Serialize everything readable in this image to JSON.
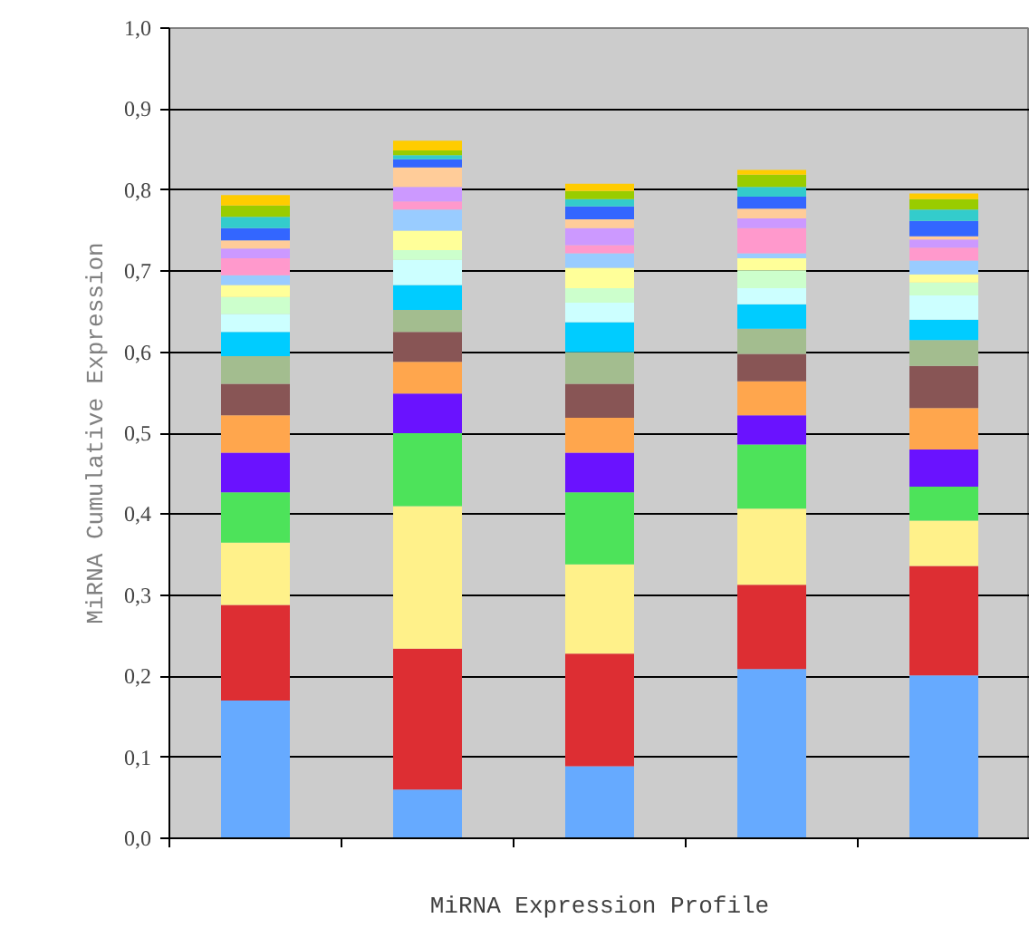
{
  "chart_data": {
    "type": "bar",
    "stacked": true,
    "xlabel": "MiRNA Expression Profile",
    "ylabel": "MiRNA Cumulative Expression",
    "categories": [
      null,
      null,
      null,
      null,
      null
    ],
    "ylim": [
      0,
      1
    ],
    "yticks": [
      {
        "value": 0,
        "label": "0,0"
      },
      {
        "value": 0.1,
        "label": "0,1"
      },
      {
        "value": 0.2,
        "label": "0,2"
      },
      {
        "value": 0.3,
        "label": "0,3"
      },
      {
        "value": 0.4,
        "label": "0,4"
      },
      {
        "value": 0.5,
        "label": "0,5"
      },
      {
        "value": 0.6,
        "label": "0,6"
      },
      {
        "value": 0.7,
        "label": "0,7"
      },
      {
        "value": 0.8,
        "label": "0,8"
      },
      {
        "value": 0.9,
        "label": "0,9"
      },
      {
        "value": 1,
        "label": "1,0"
      }
    ],
    "grid": "y",
    "series": [
      {
        "color": "#66aaff",
        "values": [
          0.17,
          0.06,
          0.089,
          0.209,
          0.201
        ]
      },
      {
        "color": "#dd2e33",
        "values": [
          0.118,
          0.174,
          0.139,
          0.104,
          0.135
        ]
      },
      {
        "color": "#fff18a",
        "values": [
          0.077,
          0.176,
          0.11,
          0.094,
          0.056
        ]
      },
      {
        "color": "#4de35a",
        "values": [
          0.062,
          0.09,
          0.089,
          0.079,
          0.042
        ]
      },
      {
        "color": "#6a12ff",
        "values": [
          0.049,
          0.049,
          0.049,
          0.036,
          0.046
        ]
      },
      {
        "color": "#ffa64d",
        "values": [
          0.046,
          0.039,
          0.043,
          0.042,
          0.051
        ]
      },
      {
        "color": "#885555",
        "values": [
          0.039,
          0.037,
          0.042,
          0.034,
          0.052
        ]
      },
      {
        "color": "#a3bd8f",
        "values": [
          0.034,
          0.027,
          0.039,
          0.031,
          0.032
        ]
      },
      {
        "color": "#00ccff",
        "values": [
          0.03,
          0.031,
          0.037,
          0.03,
          0.025
        ]
      },
      {
        "color": "#ccffff",
        "values": [
          0.022,
          0.031,
          0.024,
          0.02,
          0.03
        ]
      },
      {
        "color": "#ccffcc",
        "values": [
          0.021,
          0.012,
          0.018,
          0.022,
          0.016
        ]
      },
      {
        "color": "#ffff99",
        "values": [
          0.015,
          0.024,
          0.025,
          0.015,
          0.01
        ]
      },
      {
        "color": "#99ccff",
        "values": [
          0.012,
          0.026,
          0.018,
          0.006,
          0.017
        ]
      },
      {
        "color": "#ff99cc",
        "values": [
          0.021,
          0.01,
          0.01,
          0.031,
          0.016
        ]
      },
      {
        "color": "#cc99ff",
        "values": [
          0.012,
          0.018,
          0.021,
          0.012,
          0.01
        ]
      },
      {
        "color": "#ffcc99",
        "values": [
          0.01,
          0.024,
          0.011,
          0.012,
          0.004
        ]
      },
      {
        "color": "#3366ff",
        "values": [
          0.015,
          0.01,
          0.016,
          0.015,
          0.019
        ]
      },
      {
        "color": "#33cccc",
        "values": [
          0.014,
          0.005,
          0.009,
          0.012,
          0.014
        ]
      },
      {
        "color": "#99cc00",
        "values": [
          0.014,
          0.006,
          0.01,
          0.015,
          0.013
        ]
      },
      {
        "color": "#ffcc00",
        "values": [
          0.013,
          0.012,
          0.009,
          0.006,
          0.007
        ]
      }
    ]
  }
}
